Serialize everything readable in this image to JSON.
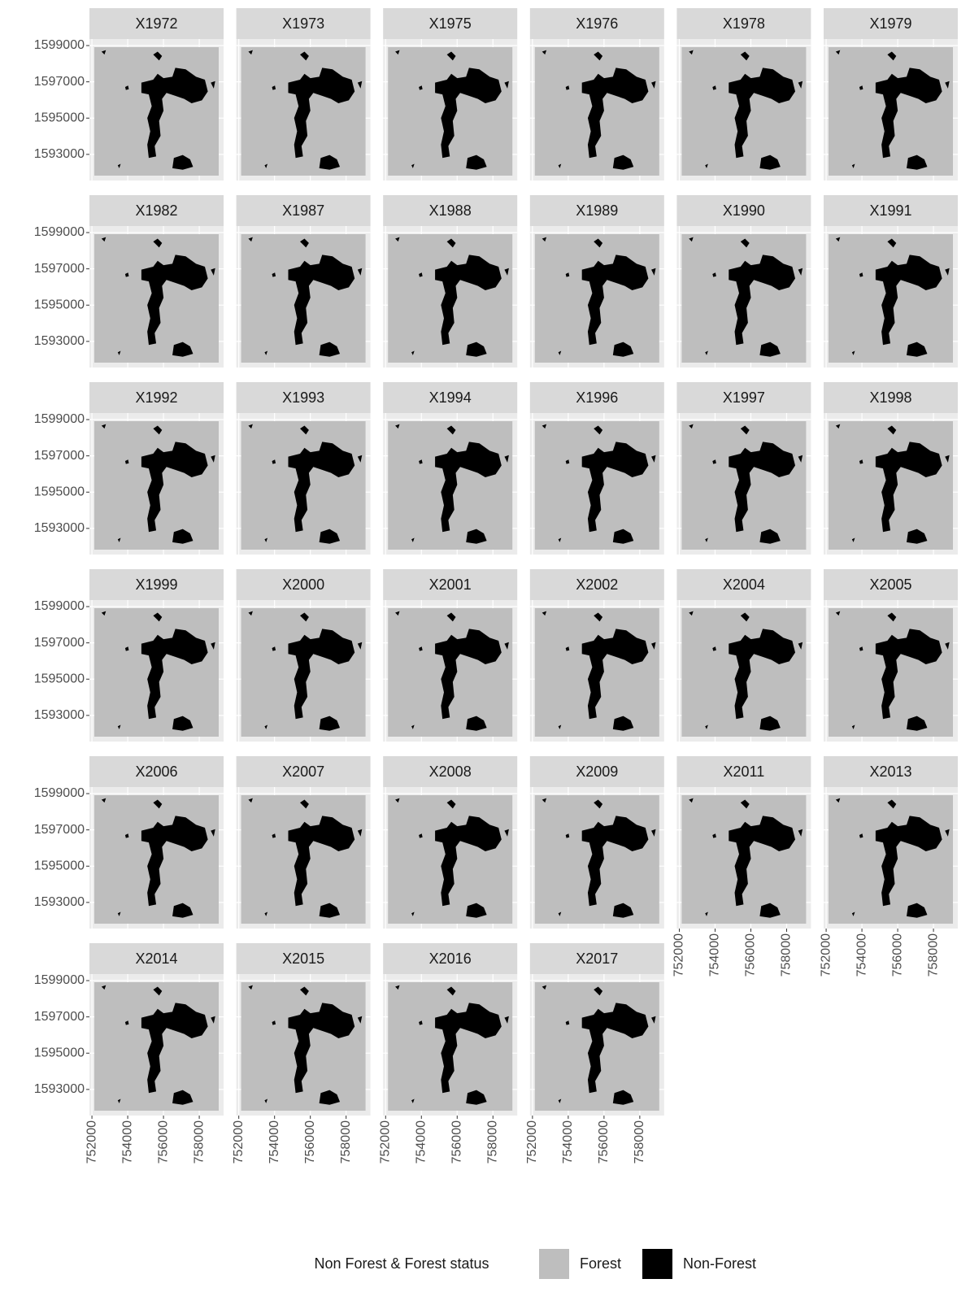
{
  "chart_data": {
    "type": "raster",
    "facets": [
      "X1972",
      "X1973",
      "X1975",
      "X1976",
      "X1978",
      "X1979",
      "X1982",
      "X1987",
      "X1988",
      "X1989",
      "X1990",
      "X1991",
      "X1992",
      "X1993",
      "X1994",
      "X1996",
      "X1997",
      "X1998",
      "X1999",
      "X2000",
      "X2001",
      "X2002",
      "X2004",
      "X2005",
      "X2006",
      "X2007",
      "X2008",
      "X2009",
      "X2011",
      "X2013",
      "X2014",
      "X2015",
      "X2016",
      "X2017"
    ],
    "xlim": [
      751860,
      759360
    ],
    "ylim": [
      1591560,
      1599360
    ],
    "xticks": [
      752000,
      754000,
      756000,
      758000
    ],
    "yticks": [
      1593000,
      1595000,
      1597000,
      1599000
    ],
    "grid": true,
    "legend_title": "Non Forest & Forest status",
    "series": [
      {
        "name": "Forest",
        "color": "#bebebe"
      },
      {
        "name": "Non-Forest",
        "color": "#000000"
      }
    ]
  }
}
